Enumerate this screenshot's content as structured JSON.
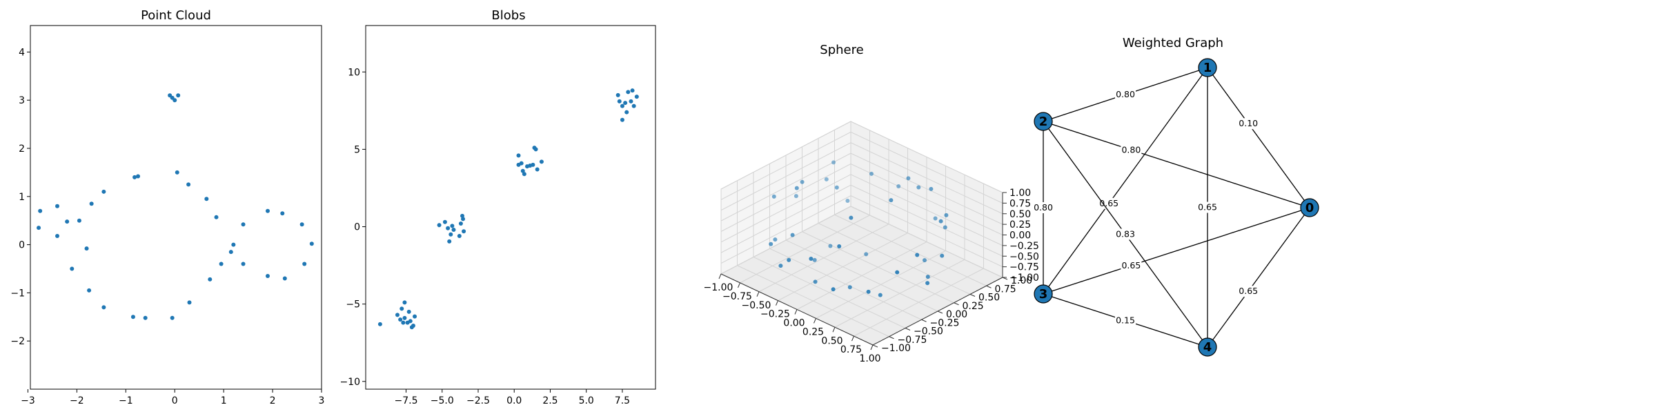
{
  "colors": {
    "point": "#1f77b4",
    "edge": "#000000",
    "axes": "#000000",
    "pane": "#f2f2f2",
    "grid": "#d4d4d4"
  },
  "chart_data": [
    {
      "type": "scatter",
      "title": "Point Cloud",
      "xlim": [
        -2.95,
        3.0
      ],
      "ylim": [
        -3.0,
        4.55
      ],
      "xticks": [
        -3,
        -2,
        -1,
        0,
        1,
        2,
        3
      ],
      "yticks": [
        -2,
        -1,
        0,
        1,
        2,
        3,
        4
      ],
      "points": [
        [
          -0.1,
          3.1
        ],
        [
          0.07,
          3.1
        ],
        [
          -0.05,
          3.05
        ],
        [
          0.0,
          3.0
        ],
        [
          -0.75,
          1.42
        ],
        [
          -0.82,
          1.4
        ],
        [
          0.05,
          1.5
        ],
        [
          0.28,
          1.25
        ],
        [
          -1.45,
          1.1
        ],
        [
          -1.7,
          0.85
        ],
        [
          -2.4,
          0.8
        ],
        [
          -2.75,
          0.7
        ],
        [
          -1.95,
          0.5
        ],
        [
          -2.2,
          0.48
        ],
        [
          -2.78,
          0.35
        ],
        [
          -2.4,
          0.18
        ],
        [
          -1.8,
          -0.08
        ],
        [
          -2.1,
          -0.5
        ],
        [
          -1.75,
          -0.95
        ],
        [
          -1.45,
          -1.3
        ],
        [
          -0.85,
          -1.5
        ],
        [
          -0.6,
          -1.52
        ],
        [
          -0.05,
          -1.52
        ],
        [
          0.3,
          -1.2
        ],
        [
          0.65,
          0.95
        ],
        [
          0.85,
          0.57
        ],
        [
          1.4,
          0.42
        ],
        [
          0.95,
          -0.4
        ],
        [
          1.2,
          0.0
        ],
        [
          1.15,
          -0.15
        ],
        [
          1.4,
          -0.4
        ],
        [
          0.72,
          -0.72
        ],
        [
          1.9,
          0.7
        ],
        [
          2.2,
          0.65
        ],
        [
          2.6,
          0.42
        ],
        [
          2.8,
          0.02
        ],
        [
          2.65,
          -0.4
        ],
        [
          1.9,
          -0.65
        ],
        [
          2.25,
          -0.7
        ]
      ]
    },
    {
      "type": "scatter",
      "title": "Blobs",
      "xlim": [
        -10.3,
        9.8
      ],
      "ylim": [
        -10.5,
        13.0
      ],
      "xticks": [
        -7.5,
        -5.0,
        -2.5,
        0.0,
        2.5,
        5.0,
        7.5
      ],
      "xtick_labels": [
        "−7.5",
        "−5.0",
        "−2.5",
        "0.0",
        "2.5",
        "5.0",
        "7.5"
      ],
      "yticks": [
        -10,
        -5,
        0,
        5,
        10
      ],
      "points": [
        [
          -9.3,
          -6.3
        ],
        [
          -7.6,
          -4.9
        ],
        [
          -7.8,
          -5.3
        ],
        [
          -7.3,
          -5.5
        ],
        [
          -8.1,
          -5.7
        ],
        [
          -7.6,
          -5.9
        ],
        [
          -7.9,
          -6.0
        ],
        [
          -7.2,
          -6.1
        ],
        [
          -6.9,
          -5.8
        ],
        [
          -7.4,
          -6.2
        ],
        [
          -7.0,
          -6.4
        ],
        [
          -7.7,
          -6.2
        ],
        [
          -7.1,
          -6.5
        ],
        [
          -5.2,
          0.1
        ],
        [
          -4.8,
          0.3
        ],
        [
          -4.3,
          0.05
        ],
        [
          -3.6,
          0.7
        ],
        [
          -3.55,
          0.5
        ],
        [
          -4.6,
          -0.1
        ],
        [
          -4.2,
          -0.2
        ],
        [
          -3.5,
          -0.3
        ],
        [
          -4.4,
          -0.5
        ],
        [
          -3.8,
          -0.6
        ],
        [
          -4.5,
          -0.95
        ],
        [
          -3.7,
          0.2
        ],
        [
          0.3,
          4.6
        ],
        [
          1.4,
          5.1
        ],
        [
          1.5,
          5.0
        ],
        [
          0.5,
          4.1
        ],
        [
          0.3,
          4.0
        ],
        [
          0.9,
          3.9
        ],
        [
          1.9,
          4.2
        ],
        [
          1.3,
          4.0
        ],
        [
          1.1,
          3.95
        ],
        [
          0.6,
          3.6
        ],
        [
          0.7,
          3.4
        ],
        [
          1.6,
          3.7
        ],
        [
          7.2,
          8.5
        ],
        [
          7.9,
          8.7
        ],
        [
          8.2,
          8.8
        ],
        [
          8.5,
          8.4
        ],
        [
          7.3,
          8.1
        ],
        [
          8.1,
          8.1
        ],
        [
          7.7,
          8.0
        ],
        [
          8.3,
          7.8
        ],
        [
          7.5,
          7.8
        ],
        [
          7.8,
          7.4
        ],
        [
          7.5,
          6.9
        ]
      ]
    },
    {
      "type": "scatter3d",
      "title": "Sphere",
      "xlim": [
        -1.0,
        1.0
      ],
      "ylim": [
        -1.0,
        1.0
      ],
      "zlim": [
        -1.0,
        1.0
      ],
      "xticks": [
        "−1.00",
        "−0.75",
        "−0.50",
        "−0.25",
        "0.00",
        "0.25",
        "0.50",
        "0.75",
        "1.00"
      ],
      "yticks": [
        "−1.00",
        "−0.75",
        "−0.50",
        "−0.25",
        "0.00",
        "0.25",
        "0.50",
        "0.75",
        "1.00"
      ],
      "zticks": [
        "−1.00",
        "−0.75",
        "−0.50",
        "−0.25",
        "0.00",
        "0.25",
        "0.50",
        "0.75",
        "1.00"
      ],
      "points": [
        [
          -0.6,
          -0.3,
          0.8
        ],
        [
          0.1,
          0.6,
          0.9
        ],
        [
          0.4,
          0.6,
          0.9
        ],
        [
          -0.8,
          0.5,
          0.6
        ],
        [
          0.7,
          0.4,
          0.55
        ],
        [
          0.9,
          -0.2,
          0.4
        ],
        [
          -0.9,
          -0.3,
          0.35
        ],
        [
          -0.5,
          0.2,
          0.5
        ],
        [
          0.3,
          -0.7,
          0.5
        ],
        [
          -0.2,
          0.8,
          0.3
        ],
        [
          0.8,
          0.3,
          -0.1
        ],
        [
          -0.95,
          0.1,
          0.0
        ],
        [
          0.1,
          -0.9,
          0.2
        ],
        [
          -0.4,
          -0.6,
          0.1
        ],
        [
          0.5,
          0.7,
          0.0
        ],
        [
          0.95,
          -0.1,
          -0.3
        ],
        [
          -0.7,
          0.6,
          -0.3
        ],
        [
          0.2,
          0.9,
          -0.2
        ],
        [
          -0.3,
          -0.9,
          -0.3
        ],
        [
          0.6,
          -0.6,
          -0.4
        ],
        [
          -0.8,
          -0.4,
          -0.5
        ],
        [
          0.4,
          0.5,
          -0.7
        ],
        [
          -0.2,
          0.3,
          -0.9
        ],
        [
          0.1,
          -0.3,
          -0.95
        ],
        [
          -0.5,
          0.1,
          -0.8
        ],
        [
          0.7,
          0.2,
          -0.6
        ],
        [
          -0.1,
          -0.6,
          -0.75
        ],
        [
          0.3,
          0.1,
          0.95
        ],
        [
          -0.6,
          -0.7,
          -0.2
        ],
        [
          0.85,
          -0.45,
          0.15
        ],
        [
          -0.3,
          0.5,
          0.75
        ],
        [
          0.2,
          -0.4,
          0.85
        ],
        [
          -0.85,
          0.45,
          0.2
        ],
        [
          0.5,
          -0.3,
          -0.8
        ],
        [
          -0.45,
          -0.2,
          -0.85
        ],
        [
          0.15,
          0.7,
          0.65
        ],
        [
          -0.7,
          -0.1,
          0.7
        ],
        [
          0.6,
          0.6,
          0.45
        ],
        [
          -0.15,
          -0.95,
          0.0
        ],
        [
          0.35,
          -0.85,
          -0.35
        ]
      ]
    },
    {
      "type": "graph",
      "title": "Weighted Graph",
      "nodes": [
        {
          "id": "0"
        },
        {
          "id": "1"
        },
        {
          "id": "2"
        },
        {
          "id": "3"
        },
        {
          "id": "4"
        }
      ],
      "edges": [
        {
          "source": "0",
          "target": "1",
          "weight": "0.10"
        },
        {
          "source": "0",
          "target": "2",
          "weight": "0.80"
        },
        {
          "source": "0",
          "target": "3",
          "weight": "0.65"
        },
        {
          "source": "0",
          "target": "4",
          "weight": "0.65"
        },
        {
          "source": "1",
          "target": "2",
          "weight": "0.80"
        },
        {
          "source": "1",
          "target": "3",
          "weight": "0.65"
        },
        {
          "source": "1",
          "target": "4",
          "weight": "0.65"
        },
        {
          "source": "2",
          "target": "3",
          "weight": "0.80"
        },
        {
          "source": "2",
          "target": "4",
          "weight": "0.83"
        },
        {
          "source": "3",
          "target": "4",
          "weight": "0.15"
        }
      ]
    }
  ]
}
